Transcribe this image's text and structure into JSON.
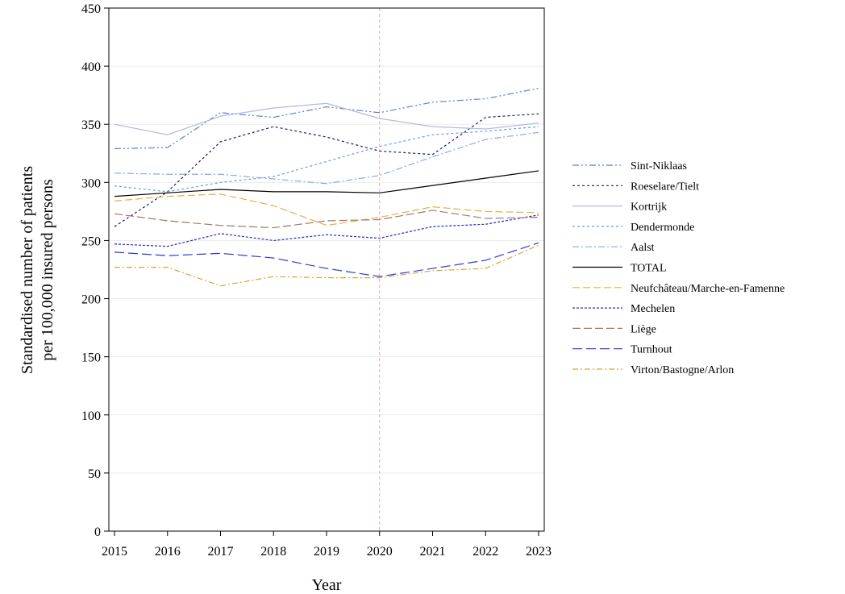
{
  "chart_data": {
    "type": "line",
    "title": "",
    "xlabel": "Year",
    "ylabel_line1": "Standardised number of patients",
    "ylabel_line2": "per 100,000 insured persons",
    "x": [
      2015,
      2016,
      2017,
      2018,
      2019,
      2020,
      2021,
      2022,
      2023
    ],
    "x_ticks": [
      "2015",
      "2016",
      "2017",
      "2018",
      "2019",
      "2020",
      "2021",
      "2022",
      "2023"
    ],
    "ylim": [
      0,
      450
    ],
    "y_ticks": [
      "0",
      "50",
      "100",
      "150",
      "200",
      "250",
      "300",
      "350",
      "400",
      "450"
    ],
    "y_tick_values": [
      0,
      50,
      100,
      150,
      200,
      250,
      300,
      350,
      400,
      450
    ],
    "grid": "horizontal",
    "reference_line_x": 2020,
    "reference_line_color": "#e0a8c0",
    "legend_position": "right",
    "series": [
      {
        "name": "Sint-Niklaas",
        "color": "#5b7fd6",
        "dash": "8 3 2 3 2 3",
        "values": [
          329,
          330,
          360,
          356,
          365,
          360,
          369,
          372,
          381
        ]
      },
      {
        "name": "Roeselare/Tielt",
        "color": "#1a1a6e",
        "dash": "3 3",
        "values": [
          262,
          292,
          335,
          348,
          339,
          327,
          324,
          356,
          359
        ]
      },
      {
        "name": "Kortrijk",
        "color": "#b8b8dc",
        "dash": "",
        "values": [
          350,
          341,
          357,
          364,
          368,
          355,
          348,
          346,
          351
        ]
      },
      {
        "name": "Dendermonde",
        "color": "#6a9ae0",
        "dash": "3 3",
        "values": [
          297,
          292,
          300,
          305,
          318,
          331,
          341,
          344,
          348
        ]
      },
      {
        "name": "Aalst",
        "color": "#8aa8e6",
        "dash": "8 3 2 3",
        "values": [
          308,
          307,
          307,
          303,
          299,
          306,
          322,
          337,
          343
        ]
      },
      {
        "name": "TOTAL",
        "color": "#000000",
        "dash": "",
        "values": [
          288,
          291,
          294,
          292,
          292,
          291,
          null,
          null,
          310
        ]
      },
      {
        "name": "Neufchâteau/Marche-en-Famenne",
        "color": "#e6b040",
        "dash": "9 4",
        "values": [
          284,
          288,
          290,
          280,
          263,
          270,
          279,
          275,
          274
        ]
      },
      {
        "name": "Mechelen",
        "color": "#2a2ad0",
        "dash": "3 2",
        "values": [
          247,
          245,
          256,
          250,
          255,
          252,
          262,
          264,
          272
        ]
      },
      {
        "name": "Liège",
        "color": "#a07868",
        "dash": "10 4",
        "values": [
          273,
          267,
          263,
          261,
          267,
          268,
          276,
          269,
          270
        ]
      },
      {
        "name": "Turnhout",
        "color": "#2a3ae0",
        "dash": "12 5",
        "values": [
          240,
          237,
          239,
          235,
          226,
          219,
          226,
          233,
          248
        ]
      },
      {
        "name": "Virton/Bastogne/Arlon",
        "color": "#d4a830",
        "dash": "7 3 2 3",
        "values": [
          227,
          227,
          211,
          219,
          218,
          218,
          224,
          226,
          246
        ]
      }
    ]
  }
}
